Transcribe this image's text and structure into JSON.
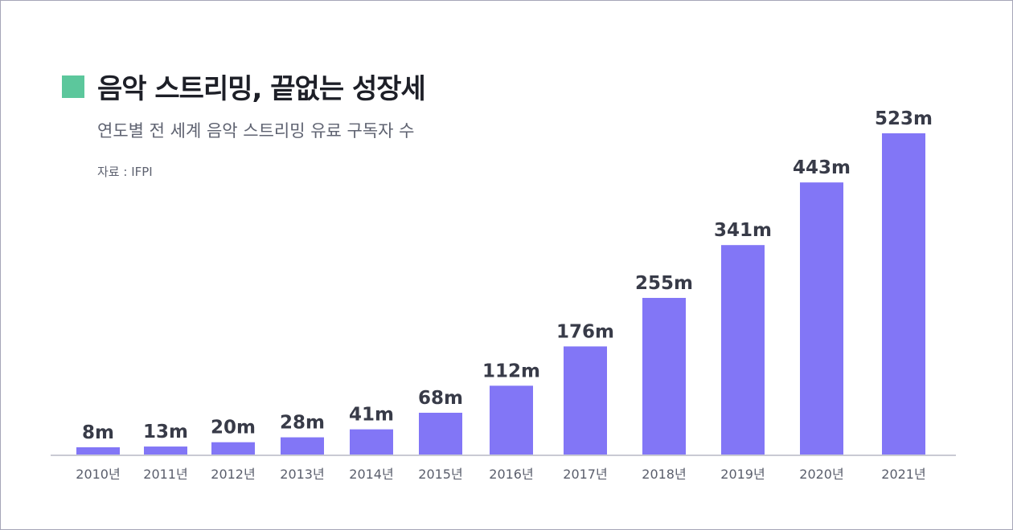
{
  "header": {
    "title": "음악 스트리밍, 끝없는 성장세",
    "subtitle": "연도별 전 세계 음악 스트리밍 유료 구독자 수",
    "source": "자료 : IFPI"
  },
  "colors": {
    "bar": "#8276f6",
    "marker": "#5cc79c",
    "title": "#1d1f27"
  },
  "chart_data": {
    "type": "bar",
    "title": "음악 스트리밍, 끝없는 성장세",
    "subtitle": "연도별 전 세계 음악 스트리밍 유료 구독자 수",
    "xlabel": "",
    "ylabel": "",
    "ylim": [
      0,
      523
    ],
    "grid": false,
    "categories": [
      "2010년",
      "2011년",
      "2012년",
      "2013년",
      "2014년",
      "2015년",
      "2016년",
      "2017년",
      "2018년",
      "2019년",
      "2020년",
      "2021년"
    ],
    "values": [
      8,
      13,
      20,
      28,
      41,
      68,
      112,
      176,
      255,
      341,
      443,
      523
    ],
    "value_labels": [
      "8m",
      "13m",
      "20m",
      "28m",
      "41m",
      "68m",
      "112m",
      "176m",
      "255m",
      "341m",
      "443m",
      "523m"
    ]
  }
}
